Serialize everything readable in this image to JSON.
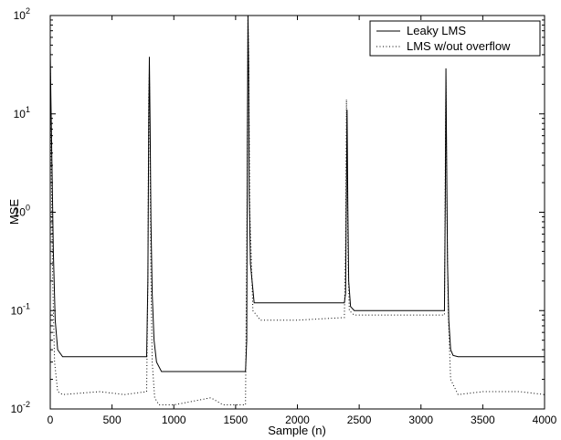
{
  "chart_data": {
    "type": "line",
    "xlabel": "Sample (n)",
    "ylabel": "MSE",
    "xlim": [
      0,
      4000
    ],
    "ylim": [
      0.01,
      100
    ],
    "yscale": "log",
    "grid": false,
    "legend_position": "top-right",
    "x_ticks": [
      "0",
      "500",
      "1000",
      "1500",
      "2000",
      "2500",
      "3000",
      "3500",
      "4000"
    ],
    "y_ticks": [
      {
        "base": "10",
        "exp": "-2"
      },
      {
        "base": "10",
        "exp": "-1"
      },
      {
        "base": "10",
        "exp": "0"
      },
      {
        "base": "10",
        "exp": "1"
      },
      {
        "base": "10",
        "exp": "2"
      }
    ],
    "series": [
      {
        "name": "Leaky LMS",
        "style": "solid",
        "color": "#000000",
        "x": [
          0,
          5,
          15,
          25,
          40,
          60,
          100,
          400,
          780,
          790,
          797,
          802,
          808,
          815,
          825,
          840,
          860,
          900,
          1200,
          1580,
          1590,
          1595,
          1600,
          1605,
          1610,
          1620,
          1650,
          1800,
          2000,
          2380,
          2390,
          2397,
          2402,
          2408,
          2415,
          2430,
          2460,
          2600,
          2800,
          3190,
          3197,
          3202,
          3208,
          3215,
          3225,
          3240,
          3260,
          3300,
          3600,
          4000
        ],
        "y": [
          45,
          15,
          2.5,
          0.4,
          0.08,
          0.04,
          0.034,
          0.034,
          0.034,
          0.2,
          8,
          38,
          8,
          0.8,
          0.15,
          0.05,
          0.03,
          0.024,
          0.024,
          0.024,
          0.05,
          5,
          100,
          30,
          1.5,
          0.3,
          0.12,
          0.12,
          0.12,
          0.12,
          0.15,
          2,
          11,
          1.2,
          0.2,
          0.11,
          0.1,
          0.1,
          0.1,
          0.1,
          1.5,
          29,
          3,
          0.3,
          0.08,
          0.04,
          0.035,
          0.034,
          0.034,
          0.034
        ]
      },
      {
        "name": "LMS w/out overflow",
        "style": "dotted",
        "color": "#000000",
        "x": [
          0,
          8,
          20,
          35,
          60,
          100,
          400,
          600,
          780,
          790,
          797,
          802,
          808,
          815,
          825,
          845,
          880,
          1000,
          1300,
          1400,
          1580,
          1592,
          1600,
          1606,
          1615,
          1640,
          1700,
          2000,
          2380,
          2390,
          2397,
          2402,
          2410,
          2420,
          2460,
          2700,
          3000,
          3190,
          3196,
          3202,
          3210,
          3220,
          3240,
          3300,
          3500,
          3800,
          4000
        ],
        "y": [
          35,
          3,
          0.2,
          0.03,
          0.015,
          0.014,
          0.015,
          0.014,
          0.015,
          0.2,
          15,
          26,
          3,
          0.2,
          0.03,
          0.013,
          0.011,
          0.011,
          0.013,
          0.011,
          0.011,
          1,
          100,
          40,
          1,
          0.1,
          0.08,
          0.08,
          0.085,
          0.5,
          14,
          3,
          0.3,
          0.1,
          0.09,
          0.09,
          0.09,
          0.09,
          2,
          22,
          1,
          0.1,
          0.02,
          0.014,
          0.015,
          0.015,
          0.014
        ]
      }
    ]
  }
}
